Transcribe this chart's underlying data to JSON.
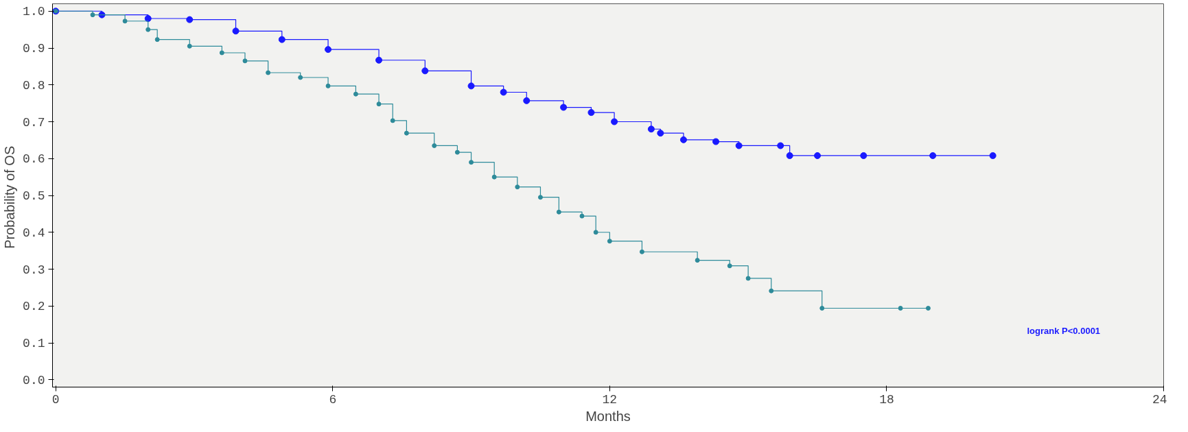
{
  "chart_data": {
    "type": "step",
    "xlabel": "Months",
    "ylabel": "Probability of  OS",
    "xlim": [
      -0.07,
      24
    ],
    "ylim": [
      -0.02,
      1.02
    ],
    "xticks": [
      0,
      6,
      12,
      18,
      24
    ],
    "yticks": [
      {
        "value": 0,
        "label": "0.0"
      },
      {
        "value": 0.1,
        "label": "0.1"
      },
      {
        "value": 0.2,
        "label": "0.2"
      },
      {
        "value": 0.3,
        "label": "0.3"
      },
      {
        "value": 0.4,
        "label": "0.4"
      },
      {
        "value": 0.5,
        "label": "0.5"
      },
      {
        "value": 0.6,
        "label": "0.6"
      },
      {
        "value": 0.7,
        "label": "0.7"
      },
      {
        "value": 0.8,
        "label": "0.8"
      },
      {
        "value": 0.9,
        "label": "0.9"
      },
      {
        "value": 1,
        "label": "1.0"
      }
    ],
    "grid": false,
    "marker": "circle",
    "line_style": "solid",
    "series": [
      {
        "color": "#1a1aff",
        "x": [
          0,
          1,
          2,
          2.9,
          3.9,
          4.9,
          5.9,
          7.0,
          8.0,
          9.0,
          9.7,
          10.2,
          11.0,
          11.6,
          12.1,
          12.9,
          13.1,
          13.6,
          14.3,
          14.8,
          15.7,
          15.9,
          16.5,
          17.5,
          19.0,
          20.3
        ],
        "values": [
          1.0,
          0.99,
          0.98,
          0.977,
          0.946,
          0.923,
          0.896,
          0.867,
          0.838,
          0.797,
          0.78,
          0.757,
          0.739,
          0.725,
          0.7,
          0.68,
          0.669,
          0.651,
          0.646,
          0.635,
          0.635,
          0.608,
          0.608,
          0.608,
          0.608,
          0.608
        ]
      },
      {
        "color": "#2e8b9a",
        "x": [
          0,
          0.8,
          1.5,
          2.0,
          2.2,
          2.9,
          3.6,
          4.1,
          4.6,
          5.3,
          5.9,
          6.5,
          7.0,
          7.3,
          7.6,
          8.2,
          8.7,
          9.0,
          9.5,
          10.0,
          10.5,
          10.9,
          11.4,
          11.7,
          12.0,
          12.7,
          13.9,
          14.6,
          15.0,
          15.5,
          16.6,
          18.3,
          18.9
        ],
        "values": [
          1.0,
          0.99,
          0.973,
          0.95,
          0.923,
          0.905,
          0.887,
          0.865,
          0.833,
          0.82,
          0.797,
          0.775,
          0.748,
          0.703,
          0.669,
          0.635,
          0.617,
          0.59,
          0.55,
          0.523,
          0.495,
          0.455,
          0.444,
          0.4,
          0.376,
          0.347,
          0.324,
          0.309,
          0.275,
          0.241,
          0.194,
          0.194,
          0.194
        ]
      }
    ],
    "annotations": [
      "logrank P<0.0001"
    ]
  }
}
